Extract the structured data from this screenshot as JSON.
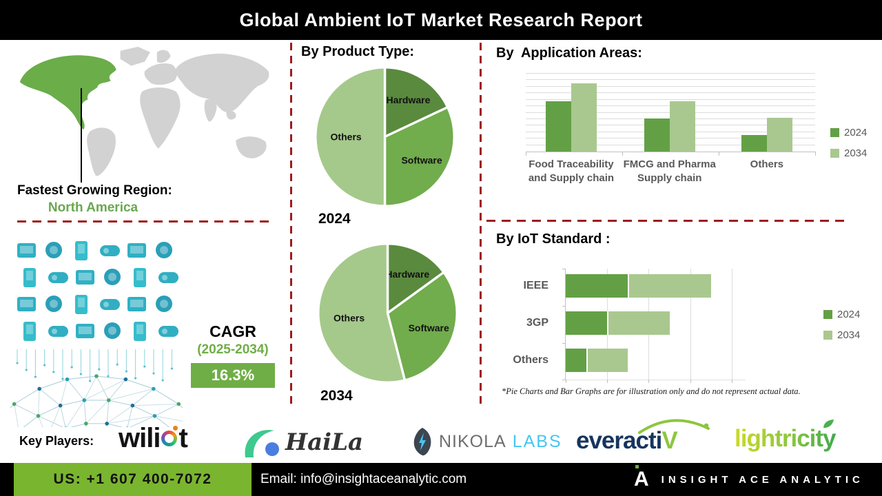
{
  "header": {
    "title": "Global Ambient IoT Market Research Report"
  },
  "map": {
    "region_label": "Fastest Growing Region:",
    "region_value": "North America",
    "highlight_color": "#6AAD49",
    "land_color": "#D2D2D2"
  },
  "sections": {
    "product_type": "By Product Type:"
  },
  "chart_data": [
    {
      "id": "product_type_2024",
      "type": "pie",
      "title": "2024",
      "labels": [
        "Hardware",
        "Software",
        "Others"
      ],
      "values": [
        18,
        32,
        50
      ],
      "colors": [
        "#5A8A3E",
        "#71AC4D",
        "#A5C98B"
      ]
    },
    {
      "id": "product_type_2034",
      "type": "pie",
      "title": "2034",
      "labels": [
        "Hardware",
        "Software",
        "Others"
      ],
      "values": [
        15,
        31,
        54
      ],
      "colors": [
        "#5A8A3E",
        "#71AC4D",
        "#A5C98B"
      ]
    },
    {
      "id": "application_areas",
      "type": "bar",
      "title": "By  Application Areas:",
      "categories": [
        [
          "Food Traceability",
          "and Supply chain"
        ],
        [
          "FMCG and Pharma",
          "Supply chain"
        ],
        [
          "Others"
        ]
      ],
      "series": [
        {
          "name": "2024",
          "color": "#63A045",
          "values": [
            7.8,
            5.1,
            2.5
          ]
        },
        {
          "name": "2034",
          "color": "#A9C88F",
          "values": [
            10.5,
            7.8,
            5.2
          ]
        }
      ],
      "ylim": [
        0,
        12
      ],
      "gridline_step": 1,
      "legend_position": "right"
    },
    {
      "id": "iot_standard",
      "type": "bar-horizontal-stacked",
      "title": "By IoT Standard :",
      "categories": [
        "IEEE",
        "3GP",
        "Others"
      ],
      "series": [
        {
          "name": "2024",
          "color": "#63A045",
          "values": [
            1.5,
            1.0,
            0.5
          ]
        },
        {
          "name": "2034",
          "color": "#A9C88F",
          "values": [
            2.0,
            1.5,
            1.0
          ]
        }
      ],
      "xlim": [
        0,
        4.35
      ],
      "gridline_step": 1,
      "legend_position": "right"
    }
  ],
  "footnote": "*Pie Charts and Bar Graphs are for illustration only and do not represent actual data.",
  "cagr": {
    "label": "CAGR",
    "period": "(2025-2034)",
    "value": "16.3%",
    "box_color": "#6FAE46"
  },
  "key_players": {
    "label": "Key Players:",
    "wiliot": {
      "pre": "wili",
      "post": "t"
    },
    "haila": {
      "text": "HaiLa"
    },
    "nikola": {
      "word1": "NIKOLA",
      "word2": "LABS"
    },
    "everactiv": {
      "pre": "everacti",
      "v": "V"
    },
    "lightricity": {
      "text": "lightricity"
    }
  },
  "footer": {
    "phone": "US: +1 607 400-7072",
    "email": "Email: info@insightaceanalytic.com",
    "brand": "INSIGHT ACE ANALYTIC",
    "brand_glyph": "A",
    "phone_bg": "#7AB52F"
  },
  "colors": {
    "accent_red": "#9E1B1B",
    "series_2024": "#63A045",
    "series_2034": "#A9C88F"
  }
}
